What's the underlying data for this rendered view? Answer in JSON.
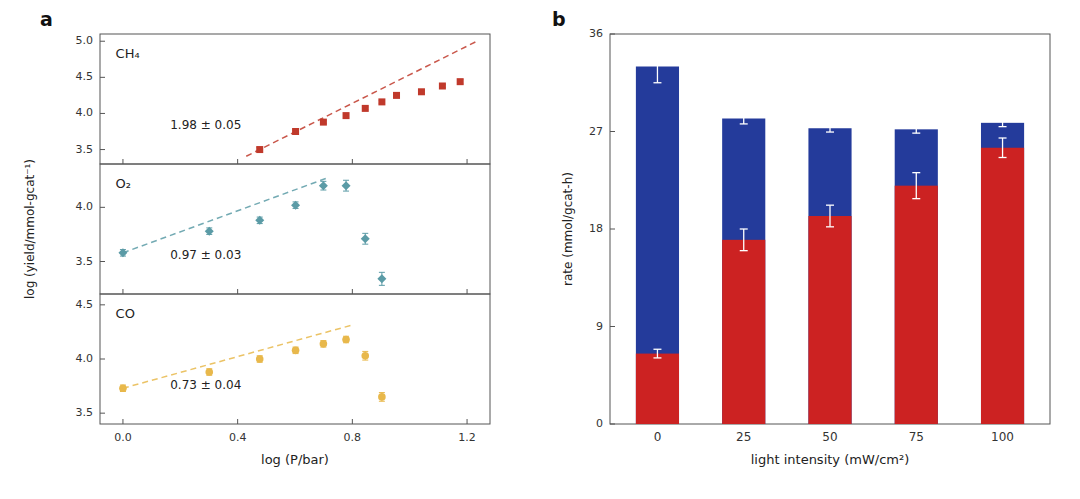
{
  "chart_data": [
    {
      "type": "scatter",
      "title": "a",
      "xlim": [
        -0.08,
        1.28
      ],
      "xticks": [
        0,
        0.4,
        0.8,
        1.2
      ],
      "ylim": [
        3.3,
        5.1
      ],
      "yticks": [
        3.5,
        {
          "value": 4,
          "label": "4.0"
        },
        4.5,
        {
          "value": 5,
          "label": "5.0"
        }
      ],
      "tick_labels": "y",
      "annotations": [
        {
          "text": "CH₄"
        },
        {
          "text": "1.98 ± 0.05"
        }
      ],
      "series": [
        {
          "type": "scatter",
          "marker": "square",
          "color": "#C0392B",
          "x": [
            0.477,
            0.602,
            0.699,
            0.778,
            0.845,
            0.903,
            0.954,
            1.041,
            1.114,
            1.176
          ],
          "values": [
            3.5,
            3.75,
            3.88,
            3.97,
            4.07,
            4.16,
            4.25,
            4.3,
            4.38,
            4.44
          ],
          "errors": [
            0.03,
            0.02,
            0.02,
            0.02,
            0.02,
            0.02,
            0.02,
            0.02,
            0.02,
            0.03
          ]
        },
        {
          "type": "line",
          "line_style": "dashed",
          "color": "#C0392B",
          "x": [
            0.43,
            1.23
          ],
          "values": [
            3.4074,
            4.9914
          ]
        }
      ]
    },
    {
      "type": "scatter",
      "ylabel": "log (yield/mmol-gcat⁻¹)",
      "xlim": [
        -0.08,
        1.28
      ],
      "xticks": [
        0,
        0.4,
        0.8,
        1.2
      ],
      "ylim": [
        3.2,
        4.4
      ],
      "yticks": [
        3.5,
        {
          "value": 4,
          "label": "4.0"
        }
      ],
      "tick_labels": "y",
      "annotations": [
        {
          "text": "O₂"
        },
        {
          "text": "0.97 ± 0.03"
        }
      ],
      "series": [
        {
          "type": "scatter",
          "marker": "diamond",
          "color": "#5B9BA6",
          "x": [
            0.0,
            0.301,
            0.477,
            0.602,
            0.699,
            0.778,
            0.845,
            0.903
          ],
          "values": [
            3.58,
            3.78,
            3.88,
            4.02,
            4.2,
            4.2,
            3.71,
            3.34
          ],
          "errors": [
            0.03,
            0.03,
            0.03,
            0.03,
            0.04,
            0.05,
            0.05,
            0.06
          ]
        },
        {
          "type": "line",
          "line_style": "dashed",
          "color": "#5B9BA6",
          "x": [
            0.0,
            0.72
          ],
          "values": [
            3.58,
            4.2784
          ]
        }
      ]
    },
    {
      "type": "scatter",
      "xlabel": "log (P/bar)",
      "xlim": [
        -0.08,
        1.28
      ],
      "xticks": [
        {
          "value": 0,
          "label": "0.0"
        },
        0.4,
        0.8,
        1.2
      ],
      "ylim": [
        3.4,
        4.6
      ],
      "yticks": [
        3.5,
        {
          "value": 4,
          "label": "4.0"
        },
        4.5
      ],
      "annotations": [
        {
          "text": "CO"
        },
        {
          "text": "0.73 ± 0.04"
        }
      ],
      "series": [
        {
          "type": "scatter",
          "marker": "circle",
          "color": "#E8B84B",
          "x": [
            0.0,
            0.301,
            0.477,
            0.602,
            0.699,
            0.778,
            0.845,
            0.903
          ],
          "values": [
            3.73,
            3.88,
            4.0,
            4.08,
            4.14,
            4.18,
            4.03,
            3.65
          ],
          "errors": [
            0.03,
            0.03,
            0.03,
            0.03,
            0.03,
            0.03,
            0.04,
            0.04
          ]
        },
        {
          "type": "line",
          "line_style": "dashed",
          "color": "#E8B84B",
          "x": [
            0.0,
            0.8
          ],
          "values": [
            3.73,
            4.314
          ]
        }
      ]
    },
    {
      "type": "bar",
      "title": "b",
      "stacked": false,
      "xlabel": "light intensity (mW/cm²)",
      "ylabel": "rate (mmol/gcat-h)",
      "categories": [
        "0",
        "25",
        "50",
        "75",
        "100"
      ],
      "ylim": [
        0,
        36
      ],
      "yticks": [
        0,
        9,
        18,
        27,
        36
      ],
      "series": [
        {
          "color": "#243B9B",
          "values": [
            33.0,
            28.2,
            27.3,
            27.2,
            27.8
          ],
          "errors": [
            1.5,
            0.5,
            0.35,
            0.35,
            0.35
          ]
        },
        {
          "color": "#CC2222",
          "values": [
            6.5,
            17.0,
            19.2,
            22.0,
            25.5
          ],
          "errors": [
            0.4,
            1.0,
            1.0,
            1.2,
            0.9
          ]
        }
      ]
    }
  ]
}
